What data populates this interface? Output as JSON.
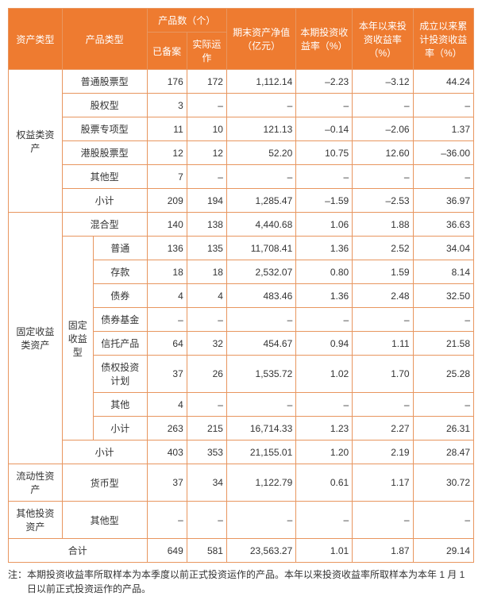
{
  "colors": {
    "header_bg": "#ee7b30",
    "header_fg": "#ffffff",
    "border": "#e8965f",
    "cell_fg": "#333333",
    "cell_bg": "#ffffff"
  },
  "header": {
    "asset_class": "资产类型",
    "product_type": "产品类型",
    "product_count": "产品数（个）",
    "filed": "已备案",
    "operating": "实际运作",
    "nav": "期末资产净值（亿元）",
    "period_return": "本期投资收益率（%）",
    "ytd_return": "本年以来投资收益率（%）",
    "inception_return": "成立以来累计投资收益率（%）"
  },
  "groups": {
    "equity": "权益类资产",
    "fixed": "固定收益类资产",
    "fixed_sub": "固定收益型",
    "liquidity": "流动性资产",
    "other": "其他投资资产",
    "total": "合计"
  },
  "ptypes": {
    "common_stock": "普通股票型",
    "equity_type": "股权型",
    "stock_special": "股票专项型",
    "hk_stock": "港股股票型",
    "other": "其他型",
    "subtotal": "小计",
    "hybrid": "混合型",
    "ordinary": "普通",
    "deposit": "存款",
    "bond": "债券",
    "bond_fund": "债券基金",
    "trust": "信托产品",
    "debt_plan": "债权投资计划",
    "other2": "其他",
    "money": "货币型"
  },
  "rows": {
    "eq_common": {
      "filed": "176",
      "op": "172",
      "nav": "1,112.14",
      "pr": "–2.23",
      "yr": "–3.12",
      "ir": "44.24"
    },
    "eq_equity": {
      "filed": "3",
      "op": "–",
      "nav": "–",
      "pr": "–",
      "yr": "–",
      "ir": "–"
    },
    "eq_special": {
      "filed": "11",
      "op": "10",
      "nav": "121.13",
      "pr": "–0.14",
      "yr": "–2.06",
      "ir": "1.37"
    },
    "eq_hk": {
      "filed": "12",
      "op": "12",
      "nav": "52.20",
      "pr": "10.75",
      "yr": "12.60",
      "ir": "–36.00"
    },
    "eq_other": {
      "filed": "7",
      "op": "–",
      "nav": "–",
      "pr": "–",
      "yr": "–",
      "ir": "–"
    },
    "eq_sub": {
      "filed": "209",
      "op": "194",
      "nav": "1,285.47",
      "pr": "–1.59",
      "yr": "–2.53",
      "ir": "36.97"
    },
    "fi_hybrid": {
      "filed": "140",
      "op": "138",
      "nav": "4,440.68",
      "pr": "1.06",
      "yr": "1.88",
      "ir": "36.63"
    },
    "fi_ord": {
      "filed": "136",
      "op": "135",
      "nav": "11,708.41",
      "pr": "1.36",
      "yr": "2.52",
      "ir": "34.04"
    },
    "fi_dep": {
      "filed": "18",
      "op": "18",
      "nav": "2,532.07",
      "pr": "0.80",
      "yr": "1.59",
      "ir": "8.14"
    },
    "fi_bond": {
      "filed": "4",
      "op": "4",
      "nav": "483.46",
      "pr": "1.36",
      "yr": "2.48",
      "ir": "32.50"
    },
    "fi_bfund": {
      "filed": "–",
      "op": "–",
      "nav": "–",
      "pr": "–",
      "yr": "–",
      "ir": "–"
    },
    "fi_trust": {
      "filed": "64",
      "op": "32",
      "nav": "454.67",
      "pr": "0.94",
      "yr": "1.11",
      "ir": "21.58"
    },
    "fi_debt": {
      "filed": "37",
      "op": "26",
      "nav": "1,535.72",
      "pr": "1.02",
      "yr": "1.70",
      "ir": "25.28"
    },
    "fi_other": {
      "filed": "4",
      "op": "–",
      "nav": "–",
      "pr": "–",
      "yr": "–",
      "ir": "–"
    },
    "fi_sub1": {
      "filed": "263",
      "op": "215",
      "nav": "16,714.33",
      "pr": "1.23",
      "yr": "2.27",
      "ir": "26.31"
    },
    "fi_sub2": {
      "filed": "403",
      "op": "353",
      "nav": "21,155.01",
      "pr": "1.20",
      "yr": "2.19",
      "ir": "28.47"
    },
    "lq_money": {
      "filed": "37",
      "op": "34",
      "nav": "1,122.79",
      "pr": "0.61",
      "yr": "1.17",
      "ir": "30.72"
    },
    "ot_other": {
      "filed": "–",
      "op": "–",
      "nav": "–",
      "pr": "–",
      "yr": "–",
      "ir": "–"
    },
    "total": {
      "filed": "649",
      "op": "581",
      "nav": "23,563.27",
      "pr": "1.01",
      "yr": "1.87",
      "ir": "29.14"
    }
  },
  "footnote": "注：本期投资收益率所取样本为本季度以前正式投资运作的产品。本年以来投资收益率所取样本为本年 1 月 1 日以前正式投资运作的产品。"
}
